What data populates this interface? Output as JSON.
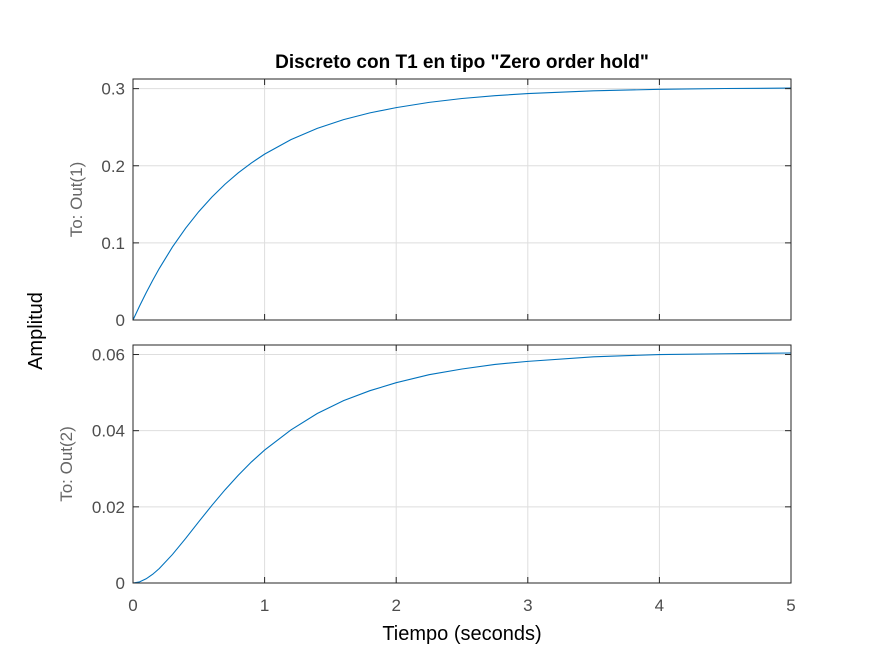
{
  "chart_data": {
    "type": "line",
    "title": "Discreto con T1 en tipo \"Zero order hold\"",
    "xlabel": "Tiempo (seconds)",
    "ylabel": "Amplitud",
    "xlim": [
      0,
      5
    ],
    "x_ticks": [
      "0",
      "1",
      "2",
      "3",
      "4",
      "5"
    ],
    "grid": true,
    "line_color": "#0072bd",
    "subplots": [
      {
        "ylabel": "To: Out(1)",
        "ylim": [
          0,
          0.3125
        ],
        "y_ticks": [
          "0",
          "0.1",
          "0.2",
          "0.3"
        ],
        "y_tick_values": [
          0,
          0.1,
          0.2,
          0.3
        ],
        "series": [
          {
            "x": [
              0,
              0.05,
              0.1,
              0.15,
              0.2,
              0.3,
              0.4,
              0.5,
              0.6,
              0.7,
              0.8,
              0.9,
              1.0,
              1.2,
              1.4,
              1.6,
              1.8,
              2.0,
              2.25,
              2.5,
              2.75,
              3.0,
              3.5,
              4.0,
              4.5,
              5.0
            ],
            "y": [
              0,
              0.0182,
              0.0354,
              0.0516,
              0.0669,
              0.0947,
              0.1191,
              0.1406,
              0.1595,
              0.1762,
              0.1908,
              0.2037,
              0.2151,
              0.2339,
              0.2485,
              0.2598,
              0.2686,
              0.2754,
              0.2822,
              0.2872,
              0.2909,
              0.2936,
              0.2972,
              0.2991,
              0.3002,
              0.3007
            ]
          }
        ]
      },
      {
        "ylabel": "To: Out(2)",
        "ylim": [
          0,
          0.0625
        ],
        "y_ticks": [
          "0",
          "0.02",
          "0.04",
          "0.06"
        ],
        "y_tick_values": [
          0,
          0.02,
          0.04,
          0.06
        ],
        "series": [
          {
            "x": [
              0,
              0.05,
              0.1,
              0.15,
              0.2,
              0.3,
              0.4,
              0.5,
              0.6,
              0.7,
              0.8,
              0.9,
              1.0,
              1.2,
              1.4,
              1.6,
              1.8,
              2.0,
              2.25,
              2.5,
              2.75,
              3.0,
              3.5,
              4.0,
              4.5,
              5.0
            ],
            "y": [
              0,
              0.0003,
              0.0011,
              0.0023,
              0.0038,
              0.0075,
              0.0117,
              0.0161,
              0.0204,
              0.0245,
              0.0283,
              0.0318,
              0.0349,
              0.0402,
              0.0445,
              0.0479,
              0.0505,
              0.0526,
              0.0547,
              0.0562,
              0.0574,
              0.0582,
              0.0594,
              0.06,
              0.0602,
              0.0604
            ]
          }
        ]
      }
    ]
  }
}
